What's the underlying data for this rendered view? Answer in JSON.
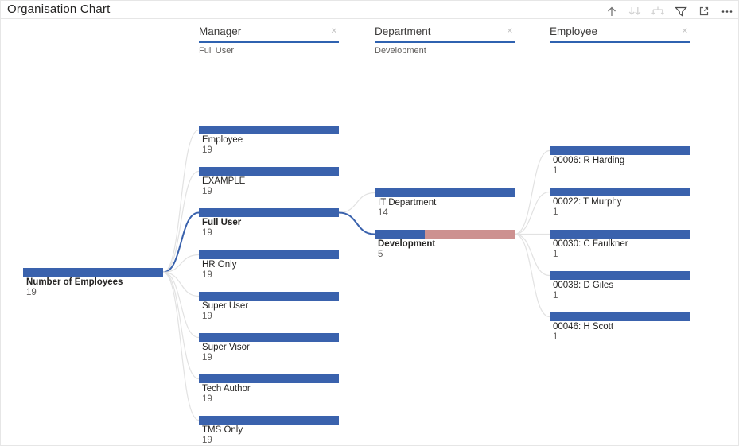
{
  "title": "Organisation Chart",
  "toolbar": {
    "icons": [
      "collapse-up",
      "expand-next-level",
      "expand-all",
      "filter",
      "focus-mode",
      "more-options"
    ]
  },
  "columns": [
    {
      "label": "Manager",
      "selected_value": "Full User",
      "close_glyph": "✕"
    },
    {
      "label": "Department",
      "selected_value": "Development",
      "close_glyph": "✕"
    },
    {
      "label": "Employee",
      "selected_value": "",
      "close_glyph": "✕"
    }
  ],
  "colors": {
    "bar_blue": "#3a62ad",
    "bar_salmon": "#cd9190",
    "link_gray": "#e2e2e2",
    "link_selected": "#3a62ad",
    "header_underline": "#2f62b0",
    "label_text": "#252423",
    "value_text": "#605e5c"
  },
  "chart_data": {
    "type": "decomposition-tree",
    "measure": "Number of Employees",
    "root": {
      "label": "Number of Employees",
      "value": 19
    },
    "levels": [
      {
        "field": "Manager",
        "selected": "Full User",
        "nodes": [
          {
            "label": "Employee",
            "value": 19
          },
          {
            "label": "EXAMPLE",
            "value": 19
          },
          {
            "label": "Full User",
            "value": 19,
            "selected": true
          },
          {
            "label": "HR Only",
            "value": 19
          },
          {
            "label": "Super User",
            "value": 19
          },
          {
            "label": "Super Visor",
            "value": 19
          },
          {
            "label": "Tech Author",
            "value": 19
          },
          {
            "label": "TMS Only",
            "value": 19
          }
        ]
      },
      {
        "field": "Department",
        "selected": "Development",
        "nodes": [
          {
            "label": "IT Department",
            "value": 14
          },
          {
            "label": "Development",
            "value": 5,
            "selected": true
          }
        ]
      },
      {
        "field": "Employee",
        "selected": null,
        "nodes": [
          {
            "label": "00006: R Harding",
            "value": 1
          },
          {
            "label": "00022: T Murphy",
            "value": 1
          },
          {
            "label": "00030: C Faulkner",
            "value": 1
          },
          {
            "label": "00038: D Giles",
            "value": 1
          },
          {
            "label": "00046: H Scott",
            "value": 1
          }
        ]
      }
    ]
  }
}
